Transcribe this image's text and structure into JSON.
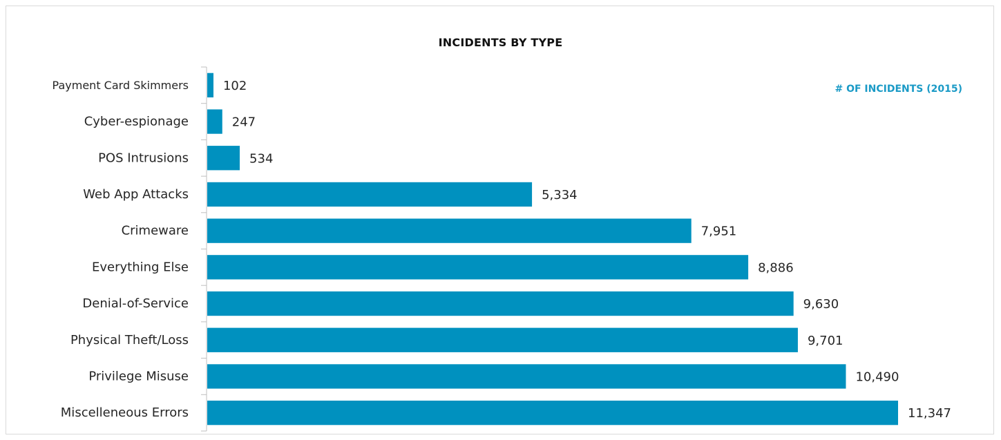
{
  "chart_data": {
    "type": "bar",
    "orientation": "horizontal",
    "title": "INCIDENTS BY TYPE",
    "xlabel": "",
    "ylabel": "",
    "categories": [
      "Payment Card Skimmers",
      "Cyber-espionage",
      "POS Intrusions",
      "Web App Attacks",
      "Crimeware",
      "Everything Else",
      "Denial-of-Service",
      "Physical Theft/Loss",
      "Privilege Misuse",
      "Miscelleneous Errors"
    ],
    "series": [
      {
        "name": "# OF INCIDENTS (2015)",
        "values": [
          102,
          247,
          534,
          5334,
          7951,
          8886,
          9630,
          9701,
          10490,
          11347
        ],
        "value_labels": [
          "102",
          "247",
          "534",
          "5,334",
          "7,951",
          "8,886",
          "9,630",
          "9,701",
          "10,490",
          "11,347"
        ]
      }
    ],
    "xlim": [
      0,
      11347
    ],
    "grid": false,
    "legend": "top-right",
    "bar_color": "#0091bf",
    "legend_color": "#1a9ac6"
  }
}
